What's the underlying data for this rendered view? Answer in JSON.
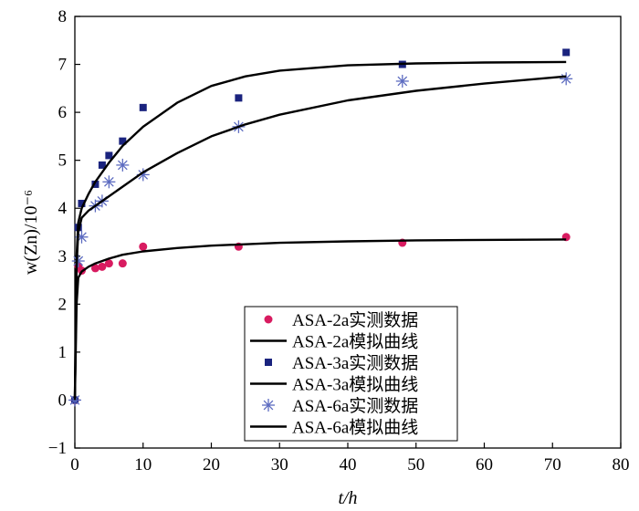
{
  "chart_data": {
    "type": "scatter",
    "xlabel": "t/h",
    "ylabel": "w(Zn)/10⁻⁶",
    "xlim": [
      0,
      80
    ],
    "ylim": [
      -1,
      8
    ],
    "xticks": [
      "0",
      "10",
      "20",
      "30",
      "40",
      "50",
      "60",
      "70",
      "80"
    ],
    "yticks": [
      "-1",
      "0",
      "1",
      "2",
      "3",
      "4",
      "5",
      "6",
      "7",
      "8"
    ],
    "grid": false,
    "legend_position": "bottom-center",
    "series": [
      {
        "name": "ASA-2a实测数据",
        "kind": "points",
        "marker": "circle",
        "color": "#d81b60",
        "x": [
          0,
          0.5,
          1,
          3,
          4,
          5,
          7,
          10,
          24,
          48,
          72
        ],
        "y": [
          0,
          2.8,
          2.7,
          2.75,
          2.78,
          2.85,
          2.85,
          3.2,
          3.2,
          3.28,
          3.4
        ]
      },
      {
        "name": "ASA-2a模拟曲线",
        "kind": "line",
        "color": "#000000",
        "x": [
          0,
          0.25,
          0.5,
          1,
          2,
          3,
          5,
          7,
          10,
          15,
          20,
          30,
          40,
          50,
          60,
          72
        ],
        "y": [
          0,
          2.0,
          2.55,
          2.68,
          2.78,
          2.85,
          2.95,
          3.03,
          3.1,
          3.17,
          3.22,
          3.28,
          3.31,
          3.33,
          3.34,
          3.35
        ]
      },
      {
        "name": "ASA-3a实测数据",
        "kind": "points",
        "marker": "square",
        "color": "#1a237e",
        "x": [
          0,
          0.5,
          1,
          3,
          4,
          5,
          7,
          10,
          24,
          48,
          72
        ],
        "y": [
          0,
          3.6,
          4.1,
          4.5,
          4.9,
          5.1,
          5.4,
          6.1,
          6.3,
          7.0,
          7.25
        ]
      },
      {
        "name": "ASA-3a模拟曲线",
        "kind": "line",
        "color": "#000000",
        "x": [
          0,
          0.25,
          0.5,
          1,
          2,
          3,
          5,
          7,
          10,
          15,
          20,
          25,
          30,
          40,
          50,
          60,
          72
        ],
        "y": [
          0,
          3.0,
          3.7,
          4.0,
          4.3,
          4.55,
          4.95,
          5.3,
          5.7,
          6.2,
          6.55,
          6.75,
          6.87,
          6.98,
          7.02,
          7.04,
          7.05
        ]
      },
      {
        "name": "ASA-6a实测数据",
        "kind": "points",
        "marker": "star",
        "color": "#5c6bc0",
        "x": [
          0,
          0.5,
          1,
          3,
          4,
          5,
          7,
          10,
          24,
          48,
          72
        ],
        "y": [
          0,
          2.9,
          3.4,
          4.05,
          4.15,
          4.55,
          4.9,
          4.7,
          5.7,
          6.65,
          6.7
        ]
      },
      {
        "name": "ASA-6a模拟曲线",
        "kind": "line",
        "color": "#000000",
        "x": [
          0,
          0.25,
          0.5,
          1,
          2,
          3,
          5,
          7,
          10,
          15,
          20,
          25,
          30,
          40,
          50,
          60,
          72
        ],
        "y": [
          0,
          2.8,
          3.5,
          3.8,
          3.95,
          4.05,
          4.25,
          4.45,
          4.75,
          5.15,
          5.5,
          5.75,
          5.95,
          6.25,
          6.45,
          6.6,
          6.75
        ]
      }
    ]
  }
}
